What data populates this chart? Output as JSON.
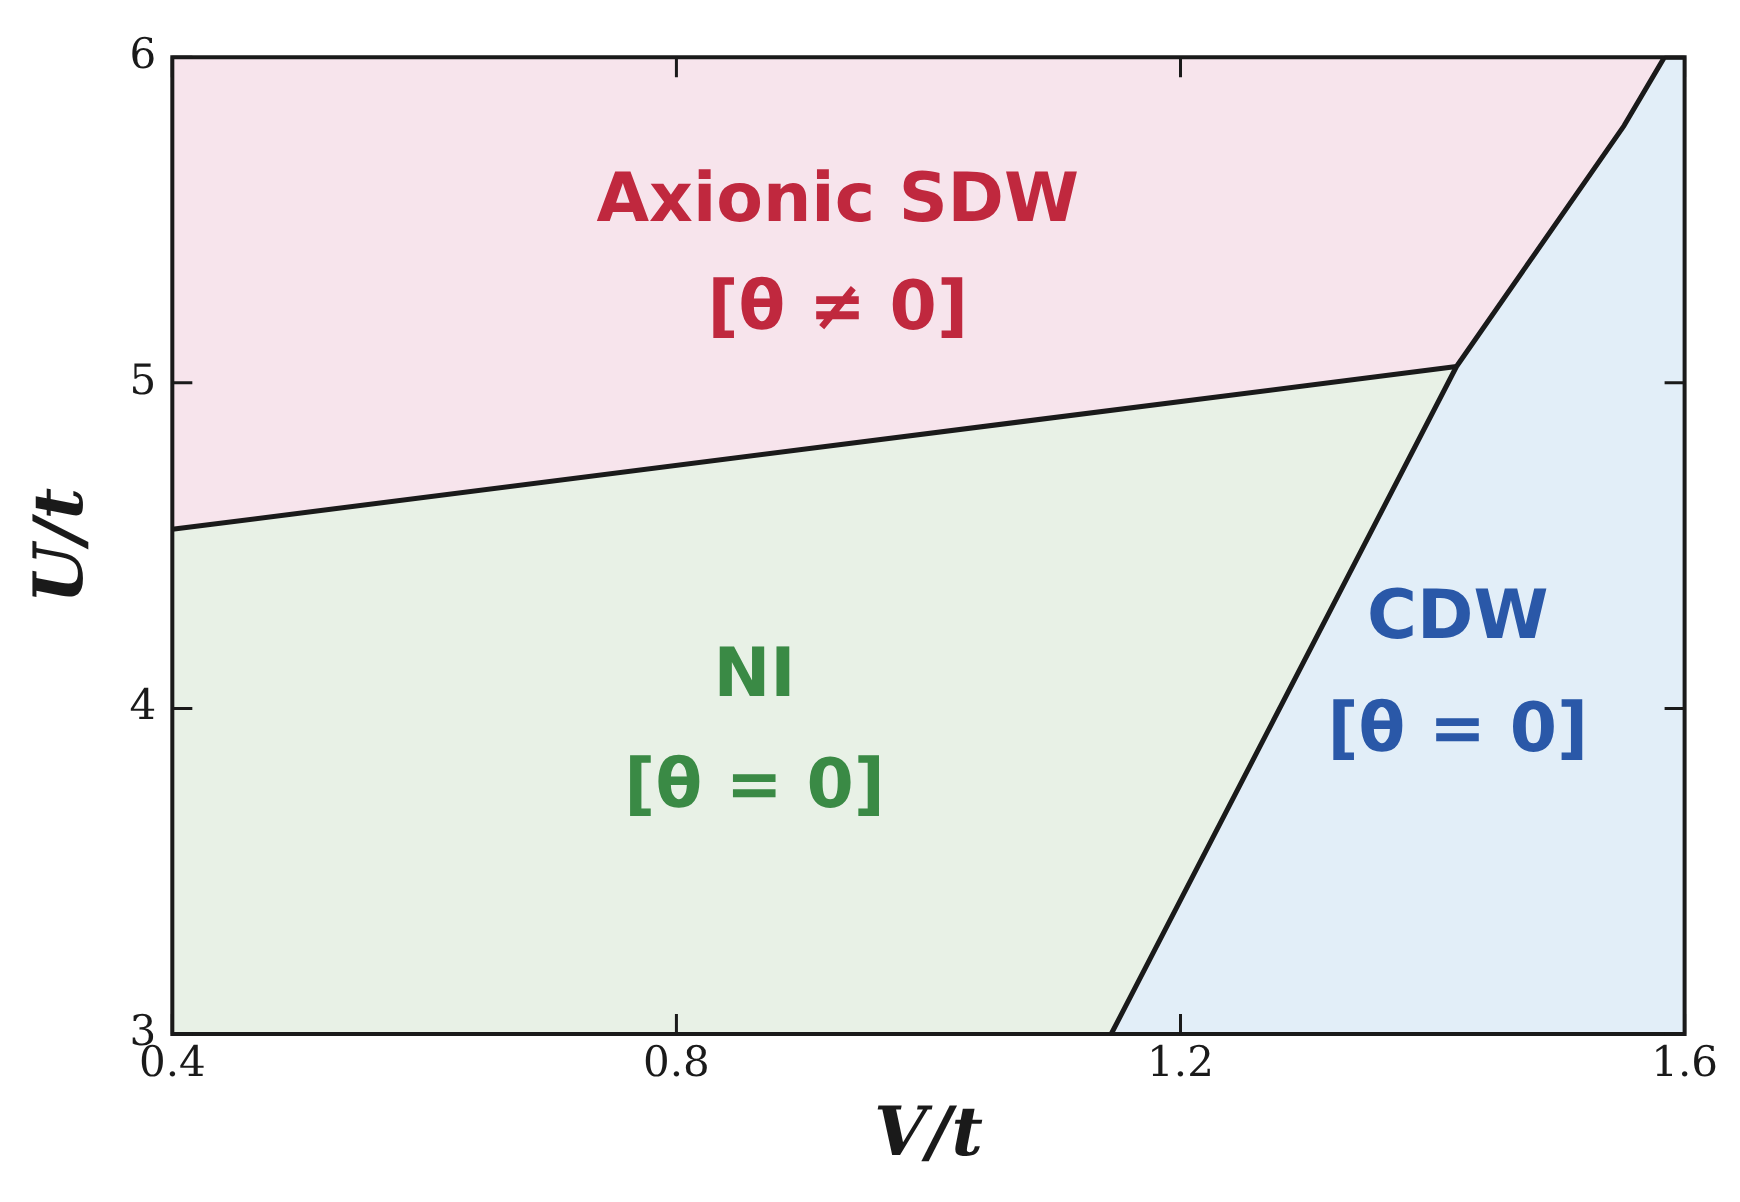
{
  "chart_data": {
    "type": "area",
    "xlabel": "V/t",
    "ylabel": "U/t",
    "xlim": [
      0.4,
      1.6
    ],
    "ylim": [
      3,
      6
    ],
    "xticks": [
      0.4,
      0.8,
      1.2,
      1.6
    ],
    "yticks": [
      3,
      4,
      5,
      6
    ],
    "grid": false,
    "legend": false,
    "marker": "none",
    "line_style": "solid",
    "series": [
      {
        "color": "#e8f1e6",
        "x": [
          0.4,
          1.419
        ],
        "values": [
          4.55,
          5.05
        ]
      },
      {
        "color": "#e2eef8",
        "x": [
          1.145,
          1.419,
          1.552,
          1.584,
          1.6
        ],
        "values": [
          3,
          5.05,
          5.79,
          6,
          6
        ]
      }
    ],
    "annotations": [
      "Axionic SDW",
      "[θ ≠ 0]",
      "NI",
      "[θ = 0]",
      "CDW",
      "[θ = 0]"
    ]
  }
}
